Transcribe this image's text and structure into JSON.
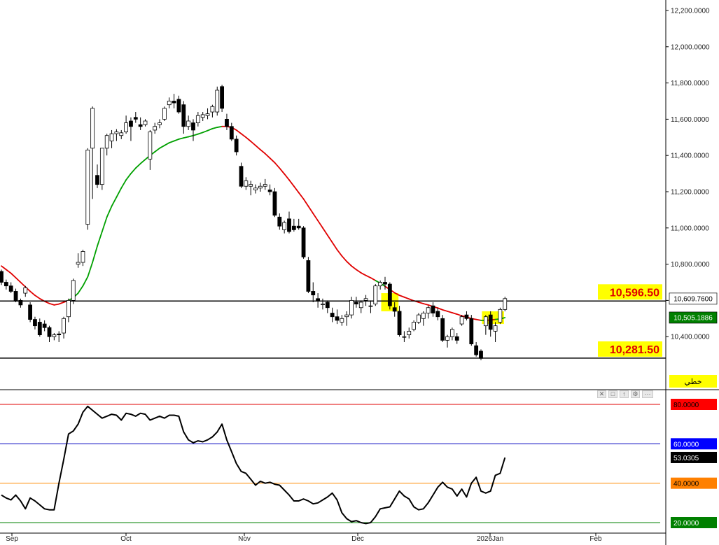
{
  "chart_data": [
    {
      "type": "candlestick",
      "x_axis": {
        "ticks": [
          "Sep",
          "Oct",
          "Nov",
          "Dec",
          "2026Jan",
          "Feb"
        ]
      },
      "y_axis": {
        "range": [
          10100,
          12260
        ],
        "ticks": [
          "12,200.0000",
          "12,000.0000",
          "11,800.0000",
          "11,600.0000",
          "11,400.0000",
          "11,200.0000",
          "11,000.0000",
          "10,800.0000",
          "10,600.0000",
          "10,400.0000"
        ]
      },
      "candles": [
        [
          10760,
          10770,
          10685,
          10700
        ],
        [
          10700,
          10715,
          10660,
          10680
        ],
        [
          10680,
          10700,
          10640,
          10650
        ],
        [
          10650,
          10665,
          10590,
          10600
        ],
        [
          10600,
          10610,
          10560,
          10575
        ],
        [
          10640,
          10680,
          10620,
          10670
        ],
        [
          10575,
          10590,
          10480,
          10495
        ],
        [
          10495,
          10510,
          10440,
          10460
        ],
        [
          10480,
          10500,
          10400,
          10410
        ],
        [
          10470,
          10490,
          10430,
          10450
        ],
        [
          10450,
          10460,
          10370,
          10400
        ],
        [
          10400,
          10420,
          10380,
          10410
        ],
        [
          10415,
          10430,
          10370,
          10410
        ],
        [
          10420,
          10510,
          10390,
          10500
        ],
        [
          10510,
          10610,
          10480,
          10600
        ],
        [
          10600,
          10720,
          10580,
          10710
        ],
        [
          10800,
          10860,
          10780,
          10810
        ],
        [
          10810,
          10880,
          10790,
          10870
        ],
        [
          11020,
          11440,
          10990,
          11430
        ],
        [
          11440,
          11670,
          11160,
          11660
        ],
        [
          11290,
          11350,
          11220,
          11240
        ],
        [
          11240,
          11440,
          11210,
          11440
        ],
        [
          11440,
          11520,
          11400,
          11510
        ],
        [
          11480,
          11540,
          11440,
          11520
        ],
        [
          11520,
          11545,
          11480,
          11530
        ],
        [
          11510,
          11540,
          11490,
          11525
        ],
        [
          11530,
          11620,
          11520,
          11580
        ],
        [
          11590,
          11610,
          11480,
          11560
        ],
        [
          11610,
          11640,
          11580,
          11600
        ],
        [
          11570,
          11610,
          11540,
          11560
        ],
        [
          11570,
          11600,
          11560,
          11590
        ],
        [
          11380,
          11540,
          11320,
          11530
        ],
        [
          11540,
          11580,
          11520,
          11560
        ],
        [
          11570,
          11600,
          11550,
          11580
        ],
        [
          11600,
          11670,
          11590,
          11660
        ],
        [
          11680,
          11720,
          11660,
          11700
        ],
        [
          11700,
          11740,
          11660,
          11690
        ],
        [
          11710,
          11730,
          11630,
          11640
        ],
        [
          11680,
          11700,
          11520,
          11560
        ],
        [
          11560,
          11620,
          11540,
          11590
        ],
        [
          11580,
          11600,
          11480,
          11540
        ],
        [
          11580,
          11640,
          11560,
          11620
        ],
        [
          11610,
          11640,
          11590,
          11625
        ],
        [
          11620,
          11660,
          11600,
          11630
        ],
        [
          11640,
          11680,
          11610,
          11670
        ],
        [
          11640,
          11780,
          11620,
          11760
        ],
        [
          11780,
          11790,
          11640,
          11660
        ],
        [
          11600,
          11630,
          11540,
          11560
        ],
        [
          11560,
          11580,
          11480,
          11490
        ],
        [
          11490,
          11510,
          11400,
          11420
        ],
        [
          11340,
          11360,
          11220,
          11230
        ],
        [
          11230,
          11280,
          11210,
          11260
        ],
        [
          11230,
          11260,
          11180,
          11240
        ],
        [
          11210,
          11240,
          11190,
          11220
        ],
        [
          11220,
          11250,
          11200,
          11230
        ],
        [
          11230,
          11270,
          11210,
          11240
        ],
        [
          11210,
          11240,
          11180,
          11200
        ],
        [
          11200,
          11220,
          11060,
          11070
        ],
        [
          11060,
          11080,
          10990,
          11010
        ],
        [
          10990,
          11040,
          10970,
          11030
        ],
        [
          11050,
          11090,
          10970,
          10980
        ],
        [
          11010,
          11050,
          10980,
          10990
        ],
        [
          11010,
          11050,
          10990,
          11000
        ],
        [
          11000,
          11010,
          10830,
          10840
        ],
        [
          10820,
          10840,
          10640,
          10650
        ],
        [
          10650,
          10700,
          10590,
          10630
        ],
        [
          10610,
          10640,
          10560,
          10600
        ],
        [
          10580,
          10610,
          10550,
          10580
        ],
        [
          10590,
          10600,
          10530,
          10560
        ],
        [
          10530,
          10560,
          10480,
          10510
        ],
        [
          10510,
          10550,
          10470,
          10490
        ],
        [
          10480,
          10520,
          10460,
          10500
        ],
        [
          10510,
          10540,
          10460,
          10520
        ],
        [
          10520,
          10620,
          10500,
          10600
        ],
        [
          10590,
          10620,
          10560,
          10580
        ],
        [
          10560,
          10600,
          10530,
          10590
        ],
        [
          10600,
          10630,
          10570,
          10610
        ],
        [
          10570,
          10600,
          10530,
          10570
        ],
        [
          10580,
          10690,
          10570,
          10680
        ],
        [
          10680,
          10710,
          10660,
          10700
        ],
        [
          10700,
          10730,
          10660,
          10690
        ],
        [
          10690,
          10700,
          10550,
          10570
        ],
        [
          10560,
          10590,
          10510,
          10540
        ],
        [
          10540,
          10570,
          10400,
          10410
        ],
        [
          10400,
          10430,
          10370,
          10400
        ],
        [
          10410,
          10450,
          10390,
          10430
        ],
        [
          10440,
          10490,
          10430,
          10480
        ],
        [
          10480,
          10530,
          10470,
          10520
        ],
        [
          10500,
          10540,
          10460,
          10530
        ],
        [
          10530,
          10570,
          10500,
          10560
        ],
        [
          10570,
          10590,
          10510,
          10530
        ],
        [
          10540,
          10560,
          10490,
          10510
        ],
        [
          10500,
          10520,
          10370,
          10380
        ],
        [
          10380,
          10410,
          10340,
          10400
        ],
        [
          10400,
          10450,
          10380,
          10440
        ],
        [
          10400,
          10420,
          10360,
          10380
        ],
        [
          10470,
          10520,
          10460,
          10510
        ],
        [
          10520,
          10540,
          10490,
          10500
        ],
        [
          10500,
          10520,
          10350,
          10360
        ],
        [
          10350,
          10370,
          10290,
          10300
        ],
        [
          10320,
          10330,
          10270,
          10280
        ],
        [
          10460,
          10520,
          10410,
          10510
        ],
        [
          10520,
          10540,
          10400,
          10440
        ],
        [
          10430,
          10480,
          10370,
          10460
        ],
        [
          10480,
          10560,
          10470,
          10550
        ],
        [
          10550,
          10620,
          10540,
          10610
        ]
      ],
      "moving_average": [
        10790,
        10770,
        10750,
        10725,
        10700,
        10675,
        10650,
        10628,
        10610,
        10595,
        10583,
        10575,
        10580,
        10590,
        10600,
        10615,
        10640,
        10680,
        10730,
        10810,
        10900,
        10980,
        11060,
        11120,
        11170,
        11220,
        11265,
        11300,
        11330,
        11355,
        11378,
        11400,
        11420,
        11440,
        11455,
        11470,
        11480,
        11490,
        11497,
        11503,
        11510,
        11518,
        11527,
        11537,
        11548,
        11555,
        11560,
        11560,
        11555,
        11540,
        11520,
        11500,
        11478,
        11455,
        11432,
        11410,
        11385,
        11360,
        11330,
        11298,
        11265,
        11230,
        11195,
        11160,
        11120,
        11080,
        11040,
        11000,
        10960,
        10920,
        10880,
        10845,
        10815,
        10790,
        10770,
        10752,
        10738,
        10725,
        10710,
        10695,
        10678,
        10660,
        10642,
        10628,
        10618,
        10608,
        10598,
        10590,
        10582,
        10575,
        10566,
        10558,
        10548,
        10540,
        10532,
        10524,
        10515,
        10508,
        10500,
        10495,
        10490,
        10490,
        10492,
        10495,
        10498,
        10505
      ],
      "ma_colors": {
        "above_price": "#00a000",
        "below_price": "#e00000"
      },
      "horizontal_lines": [
        {
          "value": 10596.5,
          "label": "10,596.50",
          "color": "#000000"
        },
        {
          "value": 10281.5,
          "label": "10,281.50",
          "color": "#000000"
        }
      ],
      "price_tags": [
        {
          "value": 10609.76,
          "label": "10,609.7600",
          "bg": "#ffffff",
          "fg": "#000000"
        },
        {
          "value": 10505.1886,
          "label": "10,505.1886",
          "bg": "#008000",
          "fg": "#ffffff"
        }
      ],
      "label_bg_color": "#ffff00",
      "label_text_color": "#e00000",
      "legend_label": "خطي",
      "highlights": [
        {
          "from": 80,
          "to": 82,
          "low": 10540,
          "high": 10640
        },
        {
          "from": 101,
          "to": 104,
          "low": 10470,
          "high": 10540
        }
      ]
    },
    {
      "type": "line",
      "y_axis": {
        "range": [
          17.8,
          84.8
        ]
      },
      "values": [
        34.0,
        32.5,
        31.5,
        34.0,
        31.0,
        27.0,
        32.5,
        31.0,
        29.0,
        27.0,
        26.5,
        26.5,
        40.0,
        52.0,
        65.0,
        66.5,
        70.0,
        76.0,
        79.0,
        77.0,
        75.0,
        73.0,
        74.0,
        75.0,
        74.5,
        72.0,
        75.5,
        75.0,
        74.0,
        75.5,
        75.0,
        72.0,
        73.0,
        74.0,
        73.0,
        74.5,
        74.5,
        74.0,
        66.0,
        62.0,
        60.5,
        61.5,
        61.0,
        62.0,
        63.5,
        66.0,
        70.0,
        62.0,
        56.0,
        50.0,
        46.0,
        45.0,
        42.0,
        39.0,
        41.0,
        40.0,
        40.5,
        39.5,
        39.0,
        36.5,
        34.0,
        31.0,
        31.0,
        32.0,
        31.0,
        29.5,
        30.0,
        31.5,
        33.0,
        35.0,
        31.5,
        25.0,
        22.0,
        20.5,
        21.0,
        20.0,
        19.5,
        20.0,
        23.0,
        27.0,
        27.5,
        28.0,
        32.0,
        36.0,
        33.5,
        32.0,
        28.0,
        26.5,
        27.0,
        30.0,
        34.0,
        38.0,
        40.5,
        38.0,
        37.0,
        33.5,
        37.0,
        33.0,
        40.0,
        43.0,
        36.0,
        35.0,
        36.0,
        44.0,
        45.0,
        53.0
      ],
      "color": "#000000",
      "levels": [
        {
          "value": 80,
          "label": "80.0000",
          "line": "#e00000",
          "bg": "#ff0000",
          "fg": "#000000"
        },
        {
          "value": 60,
          "label": "60.0000",
          "line": "#0000c0",
          "bg": "#0000ff",
          "fg": "#ffffff"
        },
        {
          "value": 40,
          "label": "40.0000",
          "line": "#ff8c00",
          "bg": "#ff8000",
          "fg": "#000000"
        },
        {
          "value": 20,
          "label": "20.0000",
          "line": "#008000",
          "bg": "#008000",
          "fg": "#ffffff"
        }
      ],
      "last_value_tag": {
        "value": 53.0305,
        "label": "53.0305",
        "bg": "#000000",
        "fg": "#ffffff"
      }
    }
  ]
}
